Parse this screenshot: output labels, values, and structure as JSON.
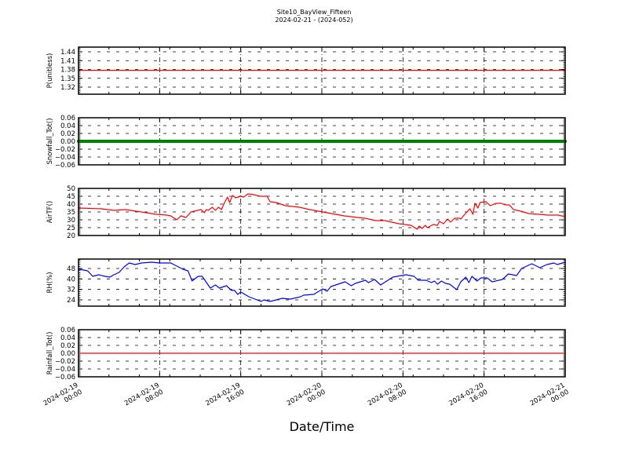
{
  "chart_data": {
    "type": "line",
    "title": "Site10_BayView_Fifteen",
    "subtitle": "2024-02-21 - (2024-052)",
    "xlabel": "Date/Time",
    "x_unit": "hours since 2024-02-19 00:00",
    "xlim": [
      0,
      48
    ],
    "x_ticks": [
      {
        "value": 0,
        "line1": "2024-02-19",
        "line2": "00:00"
      },
      {
        "value": 8,
        "line1": "2024-02-19",
        "line2": "08:00"
      },
      {
        "value": 16,
        "line1": "2024-02-19",
        "line2": "16:00"
      },
      {
        "value": 24,
        "line1": "2024-02-20",
        "line2": "00:00"
      },
      {
        "value": 32,
        "line1": "2024-02-20",
        "line2": "08:00"
      },
      {
        "value": 40,
        "line1": "2024-02-20",
        "line2": "16:00"
      },
      {
        "value": 48,
        "line1": "2024-02-21",
        "line2": "00:00"
      }
    ],
    "grid": true,
    "panels": [
      {
        "ylabel": "P(unitless)",
        "color": "#ff0000",
        "ylim": [
          1.296,
          1.456
        ],
        "yticks": [
          "1.32",
          "1.35",
          "1.38",
          "1.41",
          "1.44"
        ],
        "ytick_values": [
          1.32,
          1.35,
          1.38,
          1.41,
          1.44
        ],
        "series": [
          [
            0,
            1.377
          ],
          [
            48,
            1.377
          ]
        ]
      },
      {
        "ylabel": "Snowfall_Tot()",
        "color": "#008000",
        "style": "markers",
        "ylim": [
          -0.06,
          0.06
        ],
        "yticks": [
          "−0.06",
          "−0.04",
          "−0.02",
          "0.00",
          "0.02",
          "0.04",
          "0.06"
        ],
        "ytick_values": [
          -0.06,
          -0.04,
          -0.02,
          0,
          0.02,
          0.04,
          0.06
        ],
        "series": [
          [
            0,
            0
          ],
          [
            48,
            0
          ]
        ]
      },
      {
        "ylabel": "AirTF()",
        "color": "#ff0000",
        "ylim": [
          20,
          50
        ],
        "yticks": [
          "20",
          "25",
          "30",
          "35",
          "40",
          "45",
          "50"
        ],
        "ytick_values": [
          20,
          25,
          30,
          35,
          40,
          45,
          50
        ],
        "series": [
          [
            0,
            37.5
          ],
          [
            2.3,
            37
          ],
          [
            3.5,
            36
          ],
          [
            4.6,
            36.5
          ],
          [
            6.2,
            35
          ],
          [
            7.7,
            33.5
          ],
          [
            8.7,
            33
          ],
          [
            9.1,
            32.5
          ],
          [
            9.7,
            30
          ],
          [
            10.1,
            32.5
          ],
          [
            10.6,
            31.5
          ],
          [
            11.1,
            35
          ],
          [
            12.1,
            36.5
          ],
          [
            12.4,
            34.5
          ],
          [
            12.6,
            36.5
          ],
          [
            12.8,
            36
          ],
          [
            13.2,
            38
          ],
          [
            13.5,
            36
          ],
          [
            13.8,
            38
          ],
          [
            14.1,
            36.5
          ],
          [
            14.4,
            41
          ],
          [
            14.7,
            44.5
          ],
          [
            14.9,
            41
          ],
          [
            15.2,
            45.5
          ],
          [
            15.5,
            44
          ],
          [
            16.0,
            45
          ],
          [
            16.3,
            44.5
          ],
          [
            16.7,
            46.5
          ],
          [
            17.3,
            46
          ],
          [
            17.9,
            45
          ],
          [
            18.6,
            45
          ],
          [
            18.9,
            41.5
          ],
          [
            19.5,
            41
          ],
          [
            20.4,
            39
          ],
          [
            21.8,
            38
          ],
          [
            22.8,
            36.5
          ],
          [
            24.1,
            35
          ],
          [
            26.2,
            32.5
          ],
          [
            28.2,
            31
          ],
          [
            28.3,
            31
          ],
          [
            29.3,
            29.5
          ],
          [
            30.2,
            29.5
          ],
          [
            31.6,
            27.5
          ],
          [
            32.8,
            26.5
          ],
          [
            33.4,
            24
          ],
          [
            33.6,
            26
          ],
          [
            33.9,
            24.5
          ],
          [
            34.2,
            26.5
          ],
          [
            34.4,
            25
          ],
          [
            35.0,
            27
          ],
          [
            35.4,
            26.5
          ],
          [
            35.6,
            29
          ],
          [
            36.0,
            27.5
          ],
          [
            36.4,
            30.5
          ],
          [
            36.7,
            28.5
          ],
          [
            37.1,
            31
          ],
          [
            37.6,
            31
          ],
          [
            37.7,
            30.5
          ],
          [
            38.1,
            33.5
          ],
          [
            38.6,
            37
          ],
          [
            38.9,
            33.5
          ],
          [
            39.1,
            40.5
          ],
          [
            39.4,
            37.5
          ],
          [
            39.6,
            41
          ],
          [
            40.2,
            41.5
          ],
          [
            40.6,
            39
          ],
          [
            41.2,
            40.5
          ],
          [
            41.7,
            40.5
          ],
          [
            42.1,
            39.5
          ],
          [
            42.5,
            39.5
          ],
          [
            42.9,
            36.5
          ],
          [
            43.6,
            35.5
          ],
          [
            44.4,
            34
          ],
          [
            46.3,
            33
          ],
          [
            47.3,
            33
          ],
          [
            48,
            32
          ]
        ]
      },
      {
        "ylabel": "RH(%)",
        "color": "#0000ff",
        "ylim": [
          19.2,
          55.2
        ],
        "yticks": [
          "24",
          "32",
          "40",
          "48"
        ],
        "ytick_values": [
          24,
          32,
          40,
          48
        ],
        "series": [
          [
            0,
            47.4
          ],
          [
            0.5,
            46.8
          ],
          [
            0.9,
            46.2
          ],
          [
            1.4,
            42
          ],
          [
            2.0,
            43.2
          ],
          [
            2.6,
            42
          ],
          [
            3.1,
            41.4
          ],
          [
            3.5,
            43.2
          ],
          [
            4.0,
            45
          ],
          [
            4.5,
            49.2
          ],
          [
            5.0,
            52.2
          ],
          [
            5.6,
            51
          ],
          [
            6.2,
            52.2
          ],
          [
            7.2,
            52.8
          ],
          [
            8.0,
            52.2
          ],
          [
            9.1,
            52.2
          ],
          [
            9.7,
            49.8
          ],
          [
            10.3,
            47.4
          ],
          [
            10.8,
            46.2
          ],
          [
            11.2,
            38.4
          ],
          [
            11.8,
            42
          ],
          [
            12.2,
            42
          ],
          [
            13.0,
            33
          ],
          [
            13.5,
            35.4
          ],
          [
            13.9,
            33
          ],
          [
            14.6,
            34.8
          ],
          [
            15.1,
            31.2
          ],
          [
            15.4,
            31.2
          ],
          [
            15.7,
            28.2
          ],
          [
            16.0,
            30
          ],
          [
            16.8,
            26.4
          ],
          [
            17.4,
            24.6
          ],
          [
            18.0,
            22.8
          ],
          [
            18.3,
            24
          ],
          [
            18.9,
            22.8
          ],
          [
            19.5,
            24
          ],
          [
            20.1,
            25.2
          ],
          [
            20.9,
            24.6
          ],
          [
            21.9,
            26.4
          ],
          [
            22.2,
            27.6
          ],
          [
            23.2,
            28.2
          ],
          [
            24.1,
            32.4
          ],
          [
            24.5,
            30.6
          ],
          [
            24.9,
            34.2
          ],
          [
            26.3,
            37.8
          ],
          [
            26.9,
            34.8
          ],
          [
            27.3,
            36.6
          ],
          [
            28.3,
            39
          ],
          [
            28.6,
            37.2
          ],
          [
            29.2,
            39.6
          ],
          [
            29.8,
            35.4
          ],
          [
            31.0,
            41.4
          ],
          [
            32.3,
            43.2
          ],
          [
            33.1,
            42
          ],
          [
            33.5,
            39
          ],
          [
            34.3,
            39
          ],
          [
            34.8,
            37.2
          ],
          [
            35.1,
            38.4
          ],
          [
            35.4,
            36
          ],
          [
            35.8,
            38.4
          ],
          [
            36.2,
            36.6
          ],
          [
            36.6,
            36
          ],
          [
            37.3,
            31.8
          ],
          [
            37.7,
            37.8
          ],
          [
            38.2,
            41.4
          ],
          [
            38.5,
            37.2
          ],
          [
            38.8,
            42
          ],
          [
            39.3,
            38.4
          ],
          [
            39.7,
            40.8
          ],
          [
            40.3,
            40.8
          ],
          [
            40.8,
            37.8
          ],
          [
            41.8,
            39.6
          ],
          [
            42.4,
            43.8
          ],
          [
            43.2,
            42.6
          ],
          [
            43.7,
            48
          ],
          [
            44.7,
            51.6
          ],
          [
            45.5,
            48.6
          ],
          [
            46.2,
            51
          ],
          [
            46.9,
            52.2
          ],
          [
            47.2,
            51
          ],
          [
            48,
            52.8
          ]
        ]
      },
      {
        "ylabel": "Rainfall_Tot()",
        "color": "#ff0000",
        "ylim": [
          -0.06,
          0.06
        ],
        "yticks": [
          "−0.06",
          "−0.04",
          "−0.02",
          "0.00",
          "0.02",
          "0.04",
          "0.06"
        ],
        "ytick_values": [
          -0.06,
          -0.04,
          -0.02,
          0,
          0.02,
          0.04,
          0.06
        ],
        "series": [
          [
            0,
            0
          ],
          [
            48,
            0
          ]
        ]
      }
    ]
  }
}
